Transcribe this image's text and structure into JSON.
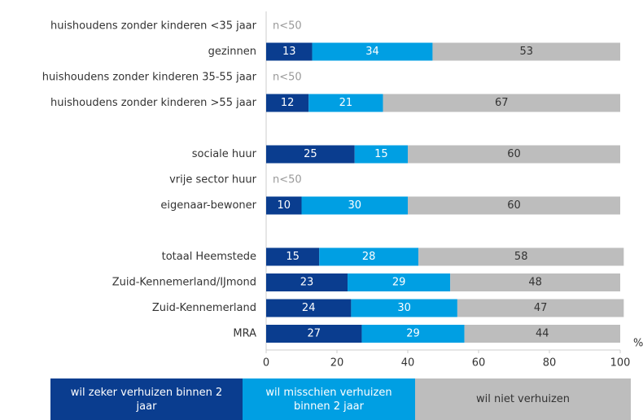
{
  "chart_data": {
    "type": "stacked-barh",
    "categories": [
      "huishoudens zonder kinderen <35 jaar",
      "gezinnen",
      "huishoudens zonder kinderen 35-55 jaar",
      "huishoudens zonder kinderen >55 jaar",
      null,
      "sociale huur",
      "vrije sector huur",
      "eigenaar-bewoner",
      null,
      "totaal Heemstede",
      "Zuid-Kennemerland/IJmond",
      "Zuid-Kennemerland",
      "MRA"
    ],
    "row_notes": [
      "n<50",
      null,
      "n<50",
      null,
      null,
      null,
      "n<50",
      null,
      null,
      null,
      null,
      null,
      null
    ],
    "series": [
      {
        "name": "wil zeker verhuizen binnen 2 jaar",
        "color": "#0a3d8f",
        "label_color": "#ffffff",
        "values": [
          null,
          13,
          null,
          12,
          null,
          25,
          null,
          10,
          null,
          15,
          23,
          24,
          27
        ]
      },
      {
        "name": "wil misschien verhuizen binnen 2 jaar",
        "color": "#009fe3",
        "label_color": "#ffffff",
        "values": [
          null,
          34,
          null,
          21,
          null,
          15,
          null,
          30,
          null,
          28,
          29,
          30,
          29
        ]
      },
      {
        "name": "wil niet verhuizen",
        "color": "#bdbdbd",
        "label_color": "#333333",
        "values": [
          null,
          53,
          null,
          67,
          null,
          60,
          null,
          60,
          null,
          58,
          48,
          47,
          44
        ]
      }
    ],
    "xlim": [
      0,
      100
    ],
    "xticks": [
      0,
      20,
      40,
      60,
      80,
      100
    ],
    "unit": "%"
  }
}
